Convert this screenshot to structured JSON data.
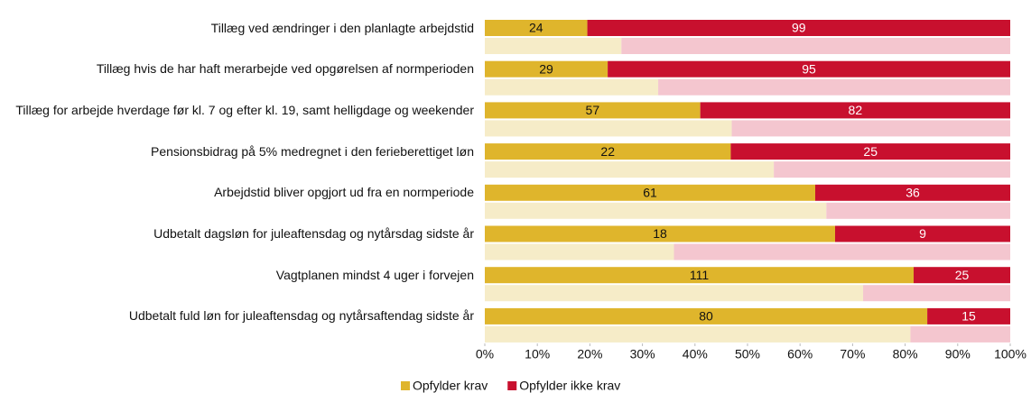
{
  "chart_data": {
    "type": "bar",
    "orientation": "horizontal",
    "stack": "percent",
    "categories": [
      "Tillæg ved ændringer i den planlagte arbejdstid",
      "Tillæg hvis de har haft merarbejde ved opgørelsen af normperioden",
      "Tillæg for arbejde hverdage før kl. 7 og efter kl. 19, samt helligdage og weekender",
      "Pensionsbidrag på 5% medregnet i den ferieberettiget løn",
      "Arbejdstid bliver opgjort ud fra en normperiode",
      "Udbetalt dagsløn for juleaftensdag og nytårsdag sidste år",
      "Vagtplanen mindst 4 uger i forvejen",
      "Udbetalt fuld løn for juleaftensdag og nytårsaftendag sidste år"
    ],
    "series": [
      {
        "name": "Opfylder krav",
        "color": "#dfb52c",
        "label_color": "#111111",
        "values": [
          24,
          29,
          57,
          22,
          61,
          18,
          111,
          80
        ]
      },
      {
        "name": "Opfylder ikke krav",
        "color": "#c8102e",
        "label_color": "#ffffff",
        "values": [
          99,
          95,
          82,
          25,
          36,
          9,
          25,
          15
        ]
      }
    ],
    "comparison_series": [
      {
        "color": "#f6ecc8",
        "values": [
          26,
          33,
          47,
          55,
          65,
          36,
          72,
          81
        ]
      },
      {
        "color": "#f4c6cf",
        "values": [
          74,
          67,
          53,
          45,
          35,
          64,
          28,
          19
        ]
      }
    ],
    "xlim": [
      0,
      100
    ],
    "xticks": [
      {
        "value": 0,
        "label": "0%"
      },
      {
        "value": 10,
        "label": "10%"
      },
      {
        "value": 20,
        "label": "20%"
      },
      {
        "value": 30,
        "label": "30%"
      },
      {
        "value": 40,
        "label": "40%"
      },
      {
        "value": 50,
        "label": "50%"
      },
      {
        "value": 60,
        "label": "60%"
      },
      {
        "value": 70,
        "label": "70%"
      },
      {
        "value": 80,
        "label": "80%"
      },
      {
        "value": 90,
        "label": "90%"
      },
      {
        "value": 100,
        "label": "100%"
      }
    ],
    "grid": false,
    "legend": "bottom"
  }
}
